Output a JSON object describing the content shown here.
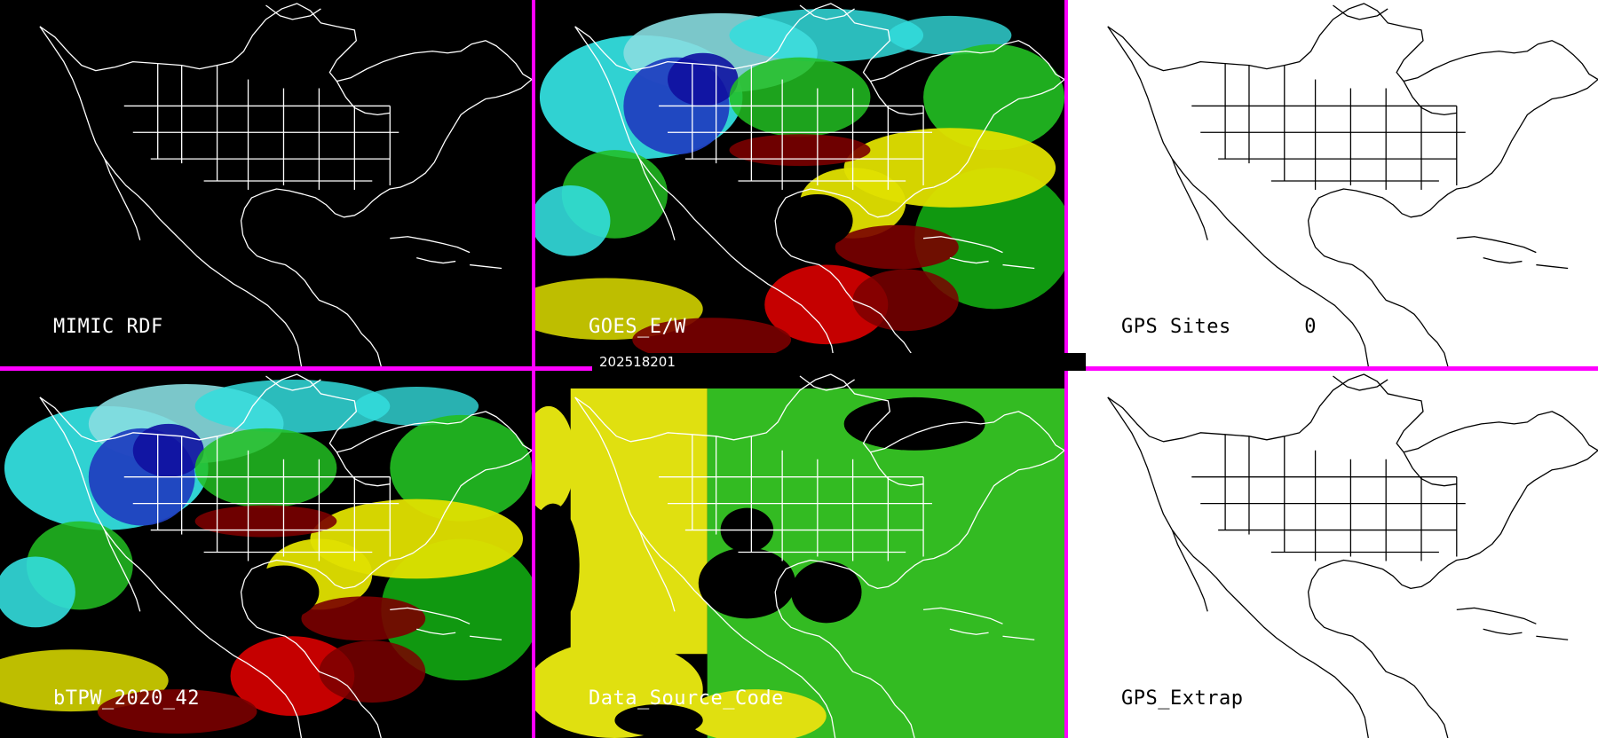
{
  "timestamp": "202518201",
  "colors": {
    "divider": "#ff00ff",
    "dark_background": "#000000",
    "light_background": "#ffffff",
    "dark_label": "#ffffff",
    "light_label": "#000000",
    "coastline_on_dark": "#ffffff",
    "coastline_on_light": "#000000",
    "precip_water_scale": [
      "#d00000",
      "#7a0000",
      "#e0e000",
      "#c8c800",
      "#22c022",
      "#11a011",
      "#33dddd",
      "#88dde0",
      "#2040c0",
      "#1010a0"
    ],
    "data_source_codes": [
      "#e0e010",
      "#33bb22"
    ]
  },
  "panels": [
    {
      "id": "mimic-rdf",
      "label": "MIMIC RDF",
      "theme": "dark",
      "layer": "none"
    },
    {
      "id": "goes-ew",
      "label": "GOES_E/W",
      "theme": "dark",
      "layer": "precipitable-water"
    },
    {
      "id": "gps-sites",
      "label": "GPS Sites",
      "count": "0",
      "theme": "light",
      "layer": "none"
    },
    {
      "id": "btpw",
      "label": "bTPW_2020_42",
      "theme": "dark",
      "layer": "precipitable-water"
    },
    {
      "id": "data-source-code",
      "label": "Data_Source_Code",
      "theme": "dark",
      "layer": "data-source-code"
    },
    {
      "id": "gps-extrap",
      "label": "GPS_Extrap",
      "theme": "light",
      "layer": "none"
    }
  ]
}
